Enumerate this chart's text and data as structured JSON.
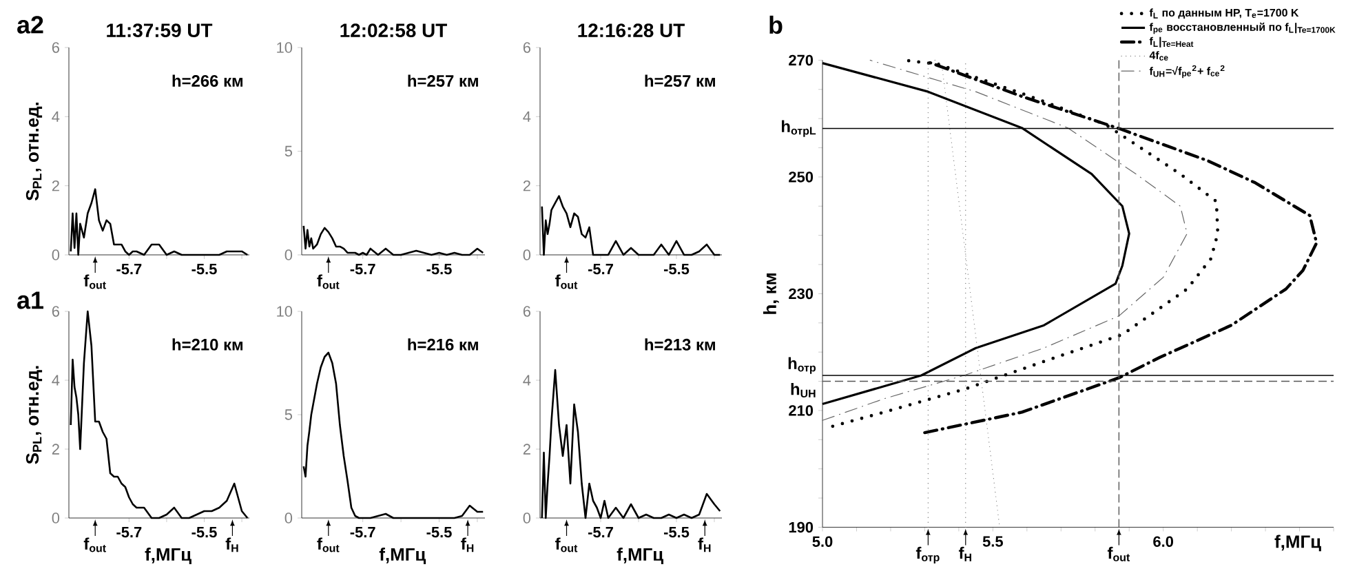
{
  "chart_data": [
    {
      "type": "line",
      "title": "11:37:59 UT",
      "ylabel": "S$_{PL}$, отн.ед.",
      "color": "#000000",
      "xlim": [
        -5.86,
        -5.38
      ],
      "ylim": [
        0,
        6
      ],
      "xticks": [
        {
          "value": -5.7,
          "label": "-5.7"
        },
        {
          "value": -5.6,
          "label": null
        },
        {
          "value": -5.5,
          "label": "-5.5"
        },
        {
          "value": -5.4,
          "label": null
        }
      ],
      "yticks": [
        0,
        2,
        4,
        6
      ],
      "x": [
        -5.855,
        -5.85,
        -5.845,
        -5.84,
        -5.835,
        -5.83,
        -5.82,
        -5.81,
        -5.8,
        -5.79,
        -5.78,
        -5.77,
        -5.76,
        -5.75,
        -5.74,
        -5.73,
        -5.72,
        -5.71,
        -5.7,
        -5.69,
        -5.68,
        -5.66,
        -5.64,
        -5.62,
        -5.6,
        -5.58,
        -5.56,
        -5.54,
        -5.52,
        -5.5,
        -5.48,
        -5.46,
        -5.44,
        -5.42,
        -5.4,
        -5.385
      ],
      "values": [
        0.1,
        1.2,
        0.2,
        1.2,
        0.0,
        0.9,
        0.5,
        1.2,
        1.5,
        1.9,
        1.0,
        0.7,
        1.0,
        0.9,
        0.3,
        0.3,
        0.3,
        0.1,
        0.0,
        0.1,
        0.1,
        0.0,
        0.3,
        0.3,
        0.0,
        0.1,
        0.0,
        0.0,
        0.0,
        0.0,
        0.0,
        0.0,
        0.1,
        0.1,
        0.1,
        0.0
      ],
      "ref_lines": [
        {
          "axis": "x",
          "value": -5.79,
          "label": "f$_{out}$",
          "line_style": "solid"
        }
      ],
      "annotations": [
        "a2",
        "h=266 км"
      ]
    },
    {
      "type": "line",
      "title": "12:02:58 UT",
      "color": "#000000",
      "xlim": [
        -5.86,
        -5.38
      ],
      "ylim": [
        0,
        10
      ],
      "xticks": [
        {
          "value": -5.7,
          "label": "-5.7"
        },
        {
          "value": -5.6,
          "label": null
        },
        {
          "value": -5.5,
          "label": "-5.5"
        },
        {
          "value": -5.4,
          "label": null
        }
      ],
      "yticks": [
        0,
        5,
        10
      ],
      "x": [
        -5.855,
        -5.85,
        -5.845,
        -5.84,
        -5.835,
        -5.83,
        -5.82,
        -5.81,
        -5.8,
        -5.79,
        -5.78,
        -5.77,
        -5.76,
        -5.75,
        -5.74,
        -5.73,
        -5.72,
        -5.71,
        -5.7,
        -5.69,
        -5.68,
        -5.66,
        -5.64,
        -5.62,
        -5.6,
        -5.58,
        -5.56,
        -5.54,
        -5.52,
        -5.5,
        -5.48,
        -5.46,
        -5.44,
        -5.42,
        -5.4,
        -5.385
      ],
      "values": [
        1.4,
        0.3,
        1.2,
        0.4,
        0.8,
        0.3,
        0.5,
        1.0,
        1.3,
        1.1,
        0.8,
        0.4,
        0.4,
        0.3,
        0.1,
        0.1,
        0.1,
        0.0,
        0.1,
        0.0,
        0.3,
        0.0,
        0.3,
        0.0,
        0.0,
        0.1,
        0.2,
        0.1,
        0.0,
        0.1,
        0.0,
        0.1,
        0.0,
        0.0,
        0.3,
        0.1
      ],
      "ref_lines": [
        {
          "axis": "x",
          "value": -5.79,
          "label": "f$_{out}$",
          "line_style": "solid"
        }
      ],
      "annotations": [
        "h=257 км"
      ]
    },
    {
      "type": "line",
      "title": "12:16:28 UT",
      "color": "#000000",
      "xlim": [
        -5.86,
        -5.38
      ],
      "ylim": [
        0,
        6
      ],
      "xticks": [
        {
          "value": -5.7,
          "label": "-5.7"
        },
        {
          "value": -5.6,
          "label": null
        },
        {
          "value": -5.5,
          "label": "-5.5"
        },
        {
          "value": -5.4,
          "label": null
        }
      ],
      "yticks": [
        0,
        2,
        4,
        6
      ],
      "x": [
        -5.855,
        -5.85,
        -5.845,
        -5.84,
        -5.835,
        -5.83,
        -5.82,
        -5.81,
        -5.8,
        -5.79,
        -5.78,
        -5.77,
        -5.76,
        -5.75,
        -5.74,
        -5.73,
        -5.72,
        -5.71,
        -5.7,
        -5.69,
        -5.68,
        -5.66,
        -5.64,
        -5.62,
        -5.6,
        -5.58,
        -5.56,
        -5.54,
        -5.52,
        -5.5,
        -5.48,
        -5.46,
        -5.44,
        -5.42,
        -5.4,
        -5.385
      ],
      "values": [
        1.4,
        0.0,
        1.0,
        0.6,
        0.9,
        1.3,
        1.5,
        1.7,
        1.4,
        1.2,
        0.8,
        1.2,
        1.1,
        0.6,
        0.5,
        0.8,
        0.0,
        0.0,
        0.0,
        0.0,
        0.0,
        0.4,
        0.0,
        0.2,
        0.0,
        0.0,
        0.0,
        0.3,
        0.0,
        0.4,
        0.0,
        0.0,
        0.1,
        0.3,
        0.0,
        0.0
      ],
      "ref_lines": [
        {
          "axis": "x",
          "value": -5.79,
          "label": "f$_{out}$",
          "line_style": "solid"
        }
      ],
      "annotations": [
        "h=257 км"
      ]
    },
    {
      "type": "line",
      "xlabel": "f,МГц",
      "ylabel": "S$_{PL}$, отн.ед.",
      "color": "#000000",
      "xlim": [
        -5.86,
        -5.38
      ],
      "ylim": [
        0,
        6
      ],
      "xticks": [
        {
          "value": -5.7,
          "label": "-5.7"
        },
        {
          "value": -5.6,
          "label": null
        },
        {
          "value": -5.5,
          "label": "-5.5"
        },
        {
          "value": -5.4,
          "label": null
        }
      ],
      "yticks": [
        0,
        2,
        4,
        6
      ],
      "x": [
        -5.855,
        -5.85,
        -5.845,
        -5.84,
        -5.835,
        -5.83,
        -5.82,
        -5.81,
        -5.8,
        -5.79,
        -5.78,
        -5.77,
        -5.76,
        -5.75,
        -5.74,
        -5.73,
        -5.72,
        -5.71,
        -5.7,
        -5.69,
        -5.68,
        -5.66,
        -5.64,
        -5.62,
        -5.6,
        -5.58,
        -5.56,
        -5.54,
        -5.52,
        -5.5,
        -5.48,
        -5.46,
        -5.44,
        -5.42,
        -5.4,
        -5.385
      ],
      "values": [
        2.7,
        4.6,
        3.8,
        3.5,
        3.0,
        2.0,
        4.5,
        6.0,
        5.0,
        2.8,
        2.8,
        2.5,
        2.3,
        1.3,
        1.2,
        1.2,
        1.0,
        0.9,
        0.6,
        0.4,
        0.3,
        0.3,
        0.0,
        0.0,
        0.1,
        0.3,
        0.0,
        0.0,
        0.1,
        0.2,
        0.2,
        0.3,
        0.5,
        1.0,
        0.2,
        0.0
      ],
      "ref_lines": [
        {
          "axis": "x",
          "value": -5.79,
          "label": "f$_{out}$",
          "line_style": "solid"
        },
        {
          "axis": "x",
          "value": -5.425,
          "label": "f$_{H}$",
          "line_style": "solid"
        }
      ],
      "annotations": [
        "a1",
        "h=210 км"
      ]
    },
    {
      "type": "line",
      "xlabel": "f,МГц",
      "color": "#000000",
      "xlim": [
        -5.86,
        -5.38
      ],
      "ylim": [
        0,
        10
      ],
      "xticks": [
        {
          "value": -5.7,
          "label": "-5.7"
        },
        {
          "value": -5.6,
          "label": null
        },
        {
          "value": -5.5,
          "label": "-5.5"
        },
        {
          "value": -5.4,
          "label": null
        }
      ],
      "yticks": [
        0,
        5,
        10
      ],
      "x": [
        -5.855,
        -5.85,
        -5.845,
        -5.84,
        -5.835,
        -5.83,
        -5.82,
        -5.81,
        -5.8,
        -5.79,
        -5.78,
        -5.77,
        -5.76,
        -5.75,
        -5.74,
        -5.73,
        -5.72,
        -5.71,
        -5.7,
        -5.69,
        -5.68,
        -5.66,
        -5.64,
        -5.62,
        -5.6,
        -5.58,
        -5.56,
        -5.54,
        -5.52,
        -5.5,
        -5.48,
        -5.46,
        -5.44,
        -5.42,
        -5.4,
        -5.385
      ],
      "values": [
        2.5,
        2.0,
        3.5,
        4.2,
        5.0,
        5.5,
        6.5,
        7.3,
        7.8,
        8.0,
        7.5,
        6.5,
        4.5,
        3.0,
        1.8,
        0.5,
        0.1,
        0.0,
        0.0,
        0.0,
        0.0,
        0.1,
        0.2,
        0.0,
        0.0,
        0.0,
        0.0,
        0.0,
        0.0,
        0.0,
        0.0,
        0.0,
        0.1,
        0.6,
        0.3,
        0.3
      ],
      "ref_lines": [
        {
          "axis": "x",
          "value": -5.79,
          "label": "f$_{out}$",
          "line_style": "solid"
        },
        {
          "axis": "x",
          "value": -5.425,
          "label": "f$_{H}$",
          "line_style": "solid"
        }
      ],
      "annotations": [
        "h=216 км"
      ]
    },
    {
      "type": "line",
      "xlabel": "f,МГц",
      "color": "#000000",
      "xlim": [
        -5.86,
        -5.38
      ],
      "ylim": [
        0,
        6
      ],
      "xticks": [
        {
          "value": -5.7,
          "label": "-5.7"
        },
        {
          "value": -5.6,
          "label": null
        },
        {
          "value": -5.5,
          "label": "-5.5"
        },
        {
          "value": -5.4,
          "label": null
        }
      ],
      "yticks": [
        0,
        2,
        4,
        6
      ],
      "x": [
        -5.855,
        -5.85,
        -5.845,
        -5.84,
        -5.835,
        -5.83,
        -5.82,
        -5.81,
        -5.8,
        -5.79,
        -5.78,
        -5.77,
        -5.76,
        -5.75,
        -5.74,
        -5.73,
        -5.72,
        -5.71,
        -5.7,
        -5.69,
        -5.68,
        -5.66,
        -5.64,
        -5.62,
        -5.6,
        -5.58,
        -5.56,
        -5.54,
        -5.52,
        -5.5,
        -5.48,
        -5.46,
        -5.44,
        -5.42,
        -5.4,
        -5.385
      ],
      "values": [
        0.0,
        1.9,
        0.0,
        1.0,
        1.8,
        2.8,
        4.3,
        2.7,
        1.8,
        2.7,
        1.0,
        3.3,
        2.5,
        1.0,
        0.0,
        1.0,
        0.5,
        0.3,
        0.0,
        0.5,
        0.0,
        0.3,
        0.0,
        0.4,
        0.0,
        0.1,
        0.0,
        0.0,
        0.1,
        0.0,
        0.1,
        0.0,
        0.1,
        0.7,
        0.4,
        0.2
      ],
      "ref_lines": [
        {
          "axis": "x",
          "value": -5.79,
          "label": "f$_{out}$",
          "line_style": "solid"
        },
        {
          "axis": "x",
          "value": -5.425,
          "label": "f$_{H}$",
          "line_style": "solid"
        }
      ],
      "annotations": [
        "h=213 км"
      ]
    },
    {
      "type": "line",
      "xlabel": "f,МГц",
      "ylabel": "h, км",
      "xlim": [
        5.0,
        6.5
      ],
      "ylim": [
        190,
        270
      ],
      "legend": "top right",
      "xticks": [
        {
          "value": 5.0,
          "label": "5.0"
        },
        {
          "value": 5.1,
          "label": null
        },
        {
          "value": 5.2,
          "label": null
        },
        {
          "value": 5.3,
          "label": null
        },
        {
          "value": 5.4,
          "label": null
        },
        {
          "value": 5.5,
          "label": "5.5"
        },
        {
          "value": 5.6,
          "label": null
        },
        {
          "value": 5.7,
          "label": null
        },
        {
          "value": 5.8,
          "label": null
        },
        {
          "value": 5.9,
          "label": null
        },
        {
          "value": 6.0,
          "label": "6.0"
        },
        {
          "value": 6.1,
          "label": null
        },
        {
          "value": 6.2,
          "label": null
        },
        {
          "value": 6.3,
          "label": null
        },
        {
          "value": 6.4,
          "label": null
        },
        {
          "value": 6.5,
          "label": null
        }
      ],
      "yticks": [
        190,
        {
          "value": 195,
          "label": null
        },
        {
          "value": 200,
          "label": null
        },
        {
          "value": 205,
          "label": null
        },
        210,
        {
          "value": 215,
          "label": null
        },
        {
          "value": 220,
          "label": null
        },
        {
          "value": 225,
          "label": null
        },
        230,
        {
          "value": 235,
          "label": null
        },
        {
          "value": 240,
          "label": null
        },
        {
          "value": 245,
          "label": null
        },
        250,
        {
          "value": 255,
          "label": null
        },
        {
          "value": 260,
          "label": null
        },
        {
          "value": 265,
          "label": null
        },
        270
      ],
      "series": [
        {
          "name": "f$_{L}$ по данным HP, T$_{e}$=1700 K",
          "color": "#000000",
          "line_style": "dotted",
          "x": [
            5.03,
            5.18,
            5.42,
            5.65,
            5.88,
            6.07,
            6.14,
            6.16,
            6.156,
            6.05,
            5.83,
            5.6,
            5.34,
            5.24
          ],
          "values": [
            207.3,
            209.7,
            213.7,
            218.4,
            223,
            230.8,
            236,
            240.3,
            245.8,
            250.5,
            259,
            264,
            269.3,
            270
          ]
        },
        {
          "name": "f$_{pe}$ восстановленный по f$_{L}$|$_{Te=1700K}$",
          "color": "#000000",
          "line_style": "solid",
          "x": [
            5.0,
            5.29,
            5.45,
            5.65,
            5.86,
            5.88,
            5.9,
            5.88,
            5.79,
            5.585,
            5.31,
            5.0
          ],
          "values": [
            211.1,
            216,
            220.7,
            224.6,
            231.7,
            234.8,
            240.3,
            245,
            250.5,
            258.4,
            264.6,
            269.5
          ]
        },
        {
          "name": "f$_{L}$|$_{Te=Heat}$",
          "color": "#000000",
          "line_style": "dashdot",
          "x": [
            5.3,
            5.585,
            5.87,
            5.99,
            6.2,
            6.36,
            6.41,
            6.45,
            6.43,
            6.27,
            6.13,
            5.87,
            5.585,
            5.31
          ],
          "values": [
            206.2,
            209.7,
            215.6,
            219.1,
            224.6,
            230.8,
            234,
            238.7,
            243.4,
            249,
            252.8,
            258.3,
            263.8,
            269.7
          ]
        },
        {
          "name": "4f$_{ce}$",
          "color": "#666666",
          "line_style": "dotted",
          "x": [
            5.33,
            5.35,
            5.52
          ],
          "values": [
            270,
            269.3,
            190
          ]
        },
        {
          "name": "f$_{UH}$=√f$_{pe}$$^{2}$+ f$_{ce}$$^{2}$",
          "color": "#666666",
          "line_style": "dashdot",
          "x": [
            5.0,
            5.18,
            5.42,
            5.65,
            5.87,
            6.0,
            6.07,
            6.05,
            5.92,
            5.72,
            5.45,
            5.14
          ],
          "values": [
            208.3,
            212,
            216.1,
            220.7,
            226.2,
            232.8,
            240.3,
            245,
            250.5,
            258.4,
            264.6,
            270
          ]
        }
      ],
      "ref_lines": [
        {
          "axis": "y",
          "value": 258.3,
          "label": "h$_{отрL}$",
          "color": "#000000",
          "line_style": "solid"
        },
        {
          "axis": "y",
          "value": 216,
          "label": "h$_{отр}$",
          "color": "#000000",
          "line_style": "solid"
        },
        {
          "axis": "y",
          "value": 215,
          "label": "h$_{UH}$",
          "color": "#555555",
          "line_style": "dashed"
        },
        {
          "axis": "x",
          "value": 5.31,
          "label": "f$_{отр}$",
          "color": "#777777",
          "line_style": "dotted"
        },
        {
          "axis": "x",
          "value": 5.42,
          "label": "f$_{H}$",
          "color": "#777777",
          "line_style": "dotted"
        },
        {
          "axis": "x",
          "value": 5.87,
          "label": "f$_{out}$",
          "color": "#555555",
          "line_style": "dashed"
        }
      ],
      "annotations": [
        "b"
      ]
    }
  ]
}
